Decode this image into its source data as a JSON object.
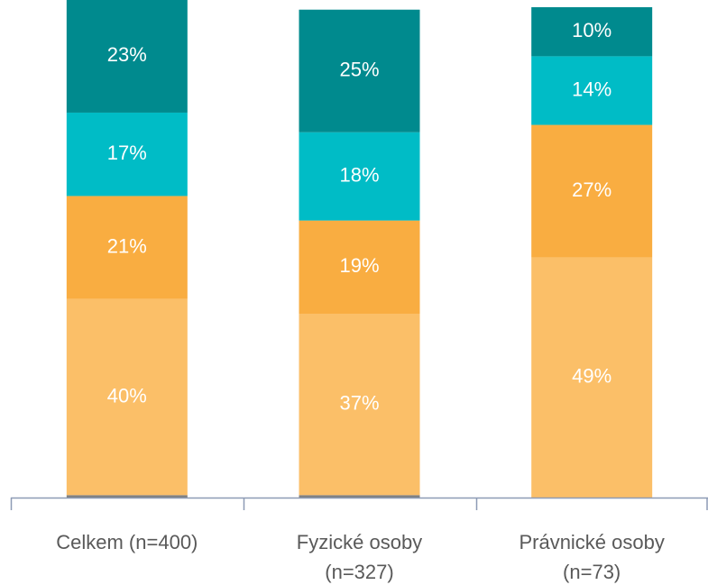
{
  "chart_data": {
    "type": "stacked_bar",
    "categories": [
      [
        "Celkem (n=400)"
      ],
      [
        "Fyzické osoby",
        "(n=327)"
      ],
      [
        "Právnické osoby",
        "(n=73)"
      ]
    ],
    "ylim": [
      0,
      100
    ],
    "series": [
      {
        "color": "#7f7f7f",
        "values": [
          0.5,
          0.5,
          0
        ]
      },
      {
        "color": "#fbbf68",
        "values": [
          40,
          37,
          49
        ],
        "value_labels": [
          "40%",
          "37%",
          "49%"
        ]
      },
      {
        "color": "#f9ad41",
        "values": [
          21,
          19,
          27
        ],
        "value_labels": [
          "21%",
          "19%",
          "27%"
        ]
      },
      {
        "color": "#00bcc6",
        "values": [
          17,
          18,
          14
        ],
        "value_labels": [
          "17%",
          "18%",
          "14%"
        ]
      },
      {
        "color": "#008a8e",
        "values": [
          23,
          25,
          10
        ],
        "value_labels": [
          "23%",
          "25%",
          "10%"
        ]
      }
    ]
  }
}
